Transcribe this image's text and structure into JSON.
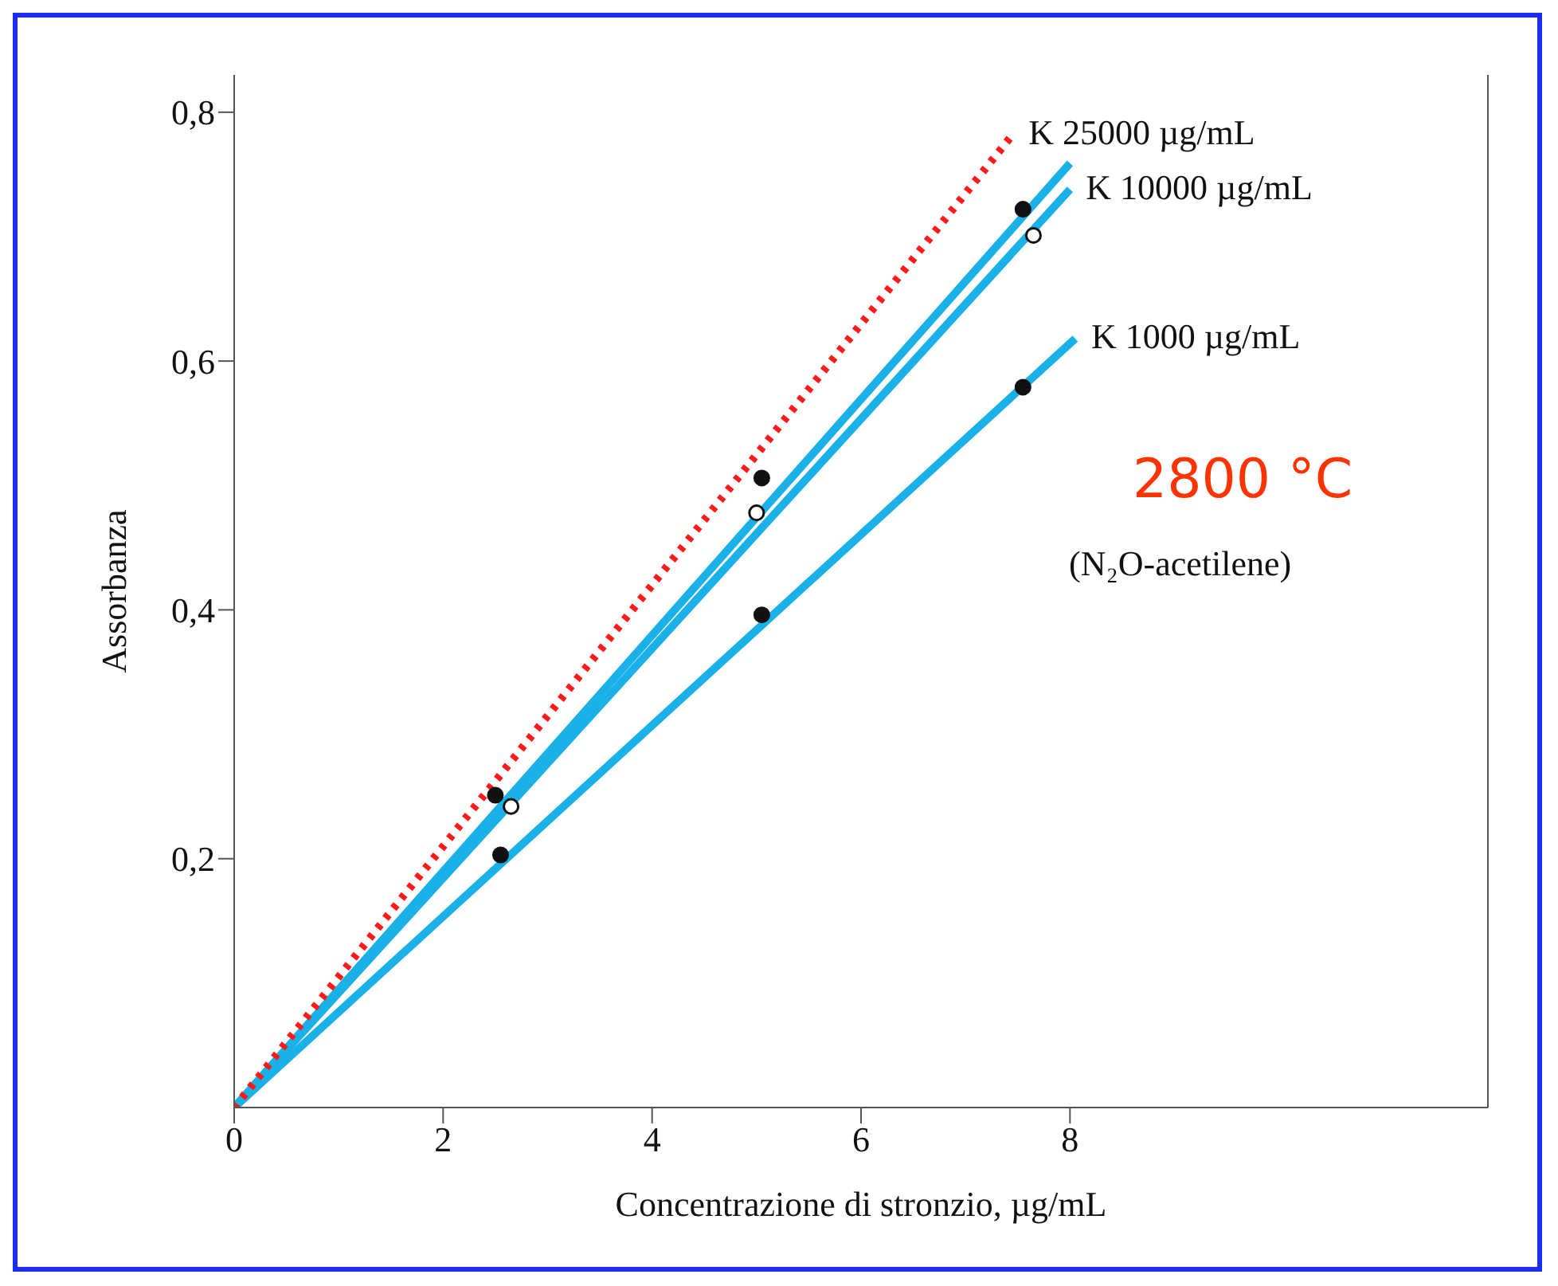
{
  "chart_data": {
    "type": "line",
    "xlabel": "Concentrazione di stronzio, µg/mL",
    "ylabel": "Assorbanza",
    "xlim": [
      0,
      12
    ],
    "xticks": [
      0,
      2,
      4,
      6,
      8
    ],
    "ylim": [
      0,
      0.83
    ],
    "yticks": [
      {
        "value": 0.2,
        "label": "0,2"
      },
      {
        "value": 0.4,
        "label": "0,4"
      },
      {
        "value": 0.6,
        "label": "0,6"
      },
      {
        "value": 0.8,
        "label": "0,8"
      }
    ],
    "annotations": [
      "2800 °C",
      "(N₂O-acetilene)"
    ],
    "series": [
      {
        "color": "#1ab0e8",
        "x": [
          0,
          8
        ],
        "values": [
          0,
          0.759
        ],
        "marker": "none",
        "line_style": "solid"
      },
      {
        "name": "K 10000 µg/mL",
        "color": "#1ab0e8",
        "x": [
          0,
          8
        ],
        "values": [
          0,
          0.738
        ],
        "marker": "none",
        "line_style": "solid"
      },
      {
        "name": "K 1000 µg/mL",
        "color": "#1ab0e8",
        "x": [
          0,
          8.05
        ],
        "values": [
          0,
          0.618
        ],
        "marker": "none",
        "line_style": "solid"
      },
      {
        "name": "K 25000 µg/mL",
        "color": "#ff1a1a",
        "x": [
          0,
          7.45
        ],
        "values": [
          0,
          0.782
        ],
        "marker": "none",
        "line_style": "dotted"
      },
      {
        "type": "scatter",
        "color": "#111111",
        "x": [
          2.5,
          5.05,
          7.55
        ],
        "values": [
          0.251,
          0.506,
          0.722
        ],
        "marker": "circle"
      },
      {
        "type": "scatter",
        "color": "#ffffff",
        "x": [
          2.65,
          5.0,
          7.65
        ],
        "values": [
          0.242,
          0.478,
          0.701
        ],
        "marker": "circle"
      },
      {
        "type": "scatter",
        "color": "#111111",
        "x": [
          2.55,
          5.05,
          7.55
        ],
        "values": [
          0.203,
          0.396,
          0.579
        ],
        "marker": "circle"
      }
    ]
  }
}
